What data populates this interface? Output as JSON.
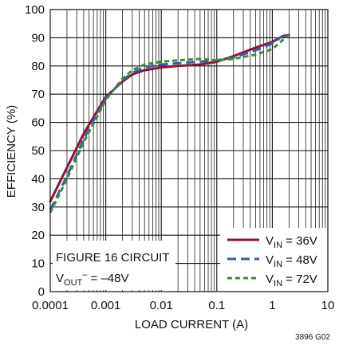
{
  "chart_data": {
    "type": "line",
    "xlabel": "LOAD CURRENT (A)",
    "ylabel": "EFFICIENCY (%)",
    "xscale": "log",
    "xlim": [
      0.0001,
      10
    ],
    "ylim": [
      0,
      100
    ],
    "x_ticks": [
      "0.0001",
      "0.001",
      "0.01",
      "0.1",
      "1",
      "10"
    ],
    "y_ticks": [
      "0",
      "10",
      "20",
      "30",
      "40",
      "50",
      "60",
      "70",
      "80",
      "90",
      "100"
    ],
    "grid": true,
    "legend_placement": "bottom-right",
    "annotation": {
      "line1": "FIGURE 16 CIRCUIT",
      "vout_main": "V",
      "vout_sub": "OUT",
      "vout_sup": "–",
      "vout_rest": " = –48V"
    },
    "figure_id": "3896 G02",
    "series": [
      {
        "legend_main": "V",
        "legend_sub": "IN",
        "legend_rest": " = 36V",
        "color": "#8b1538",
        "dash": "solid",
        "x": [
          0.0001,
          0.0002,
          0.0004,
          0.0007,
          0.001,
          0.002,
          0.003,
          0.005,
          0.01,
          0.02,
          0.05,
          0.1,
          0.2,
          0.5,
          1,
          1.5,
          2
        ],
        "y": [
          32,
          44,
          56,
          64,
          69,
          74.5,
          77,
          78.5,
          79.5,
          80,
          80.5,
          81.5,
          83.5,
          86.5,
          88.5,
          90.5,
          91
        ]
      },
      {
        "legend_main": "V",
        "legend_sub": "IN",
        "legend_rest": " = 48V",
        "color": "#3d5aa6",
        "dash": "long",
        "x": [
          0.0001,
          0.0002,
          0.0004,
          0.0007,
          0.001,
          0.002,
          0.003,
          0.005,
          0.01,
          0.02,
          0.05,
          0.1,
          0.2,
          0.5,
          1,
          1.5,
          2
        ],
        "y": [
          29,
          41,
          54,
          63,
          68.5,
          75,
          77.5,
          79.5,
          80.5,
          81,
          81.5,
          82,
          83,
          85.5,
          88,
          90.5,
          91.5
        ]
      },
      {
        "legend_main": "V",
        "legend_sub": "IN",
        "legend_rest": " = 72V",
        "color": "#3a8c3a",
        "dash": "short",
        "x": [
          0.0001,
          0.0002,
          0.0004,
          0.0007,
          0.001,
          0.002,
          0.003,
          0.005,
          0.01,
          0.02,
          0.05,
          0.1,
          0.2,
          0.5,
          1,
          1.5,
          2
        ],
        "y": [
          28,
          40,
          53,
          62,
          68,
          75.5,
          78.5,
          80.5,
          81.5,
          82,
          82.5,
          82,
          82.5,
          84,
          86,
          89,
          91
        ]
      }
    ]
  }
}
